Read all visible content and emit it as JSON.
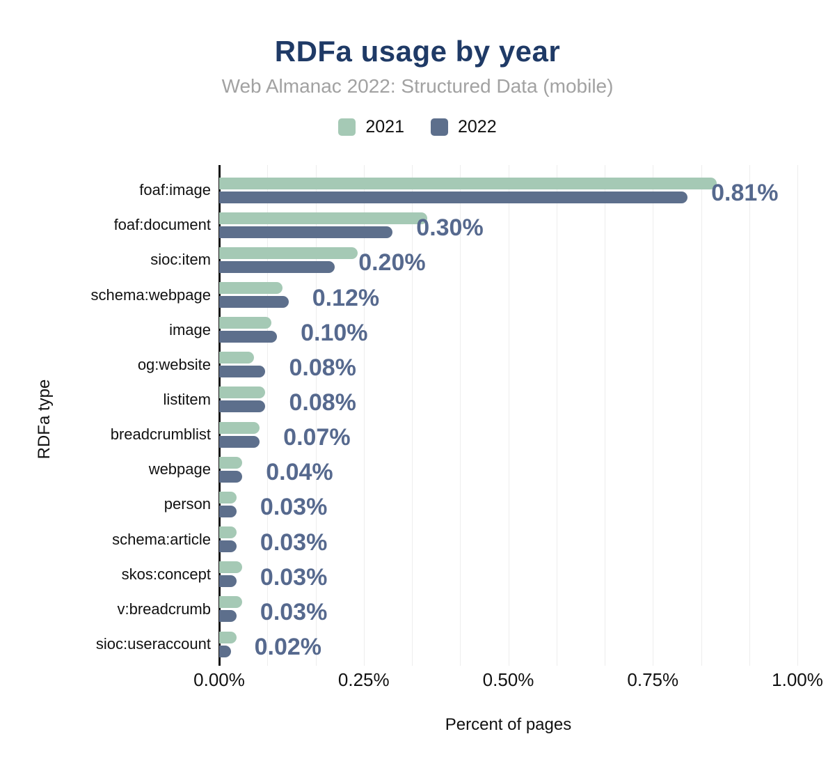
{
  "header": {
    "title": "RDFa usage by year",
    "subtitle": "Web Almanac 2022: Structured Data (mobile)"
  },
  "legend": {
    "items": [
      {
        "label": "2021",
        "color": "#a5c9b5"
      },
      {
        "label": "2022",
        "color": "#5d6f8c"
      }
    ]
  },
  "chart_data": {
    "type": "bar",
    "orientation": "horizontal",
    "title": "RDFa usage by year",
    "subtitle": "Web Almanac 2022: Structured Data (mobile)",
    "xlabel": "Percent of pages",
    "ylabel": "RDFa type",
    "xlim": [
      0,
      1.0
    ],
    "x_ticks": [
      "0.00%",
      "0.25%",
      "0.50%",
      "0.75%",
      "1.00%"
    ],
    "x_tick_values": [
      0,
      0.25,
      0.5,
      0.75,
      1.0
    ],
    "grid": "minor vertical gridlines, 12 divisions",
    "legend_position": "top",
    "categories": [
      "foaf:image",
      "foaf:document",
      "sioc:item",
      "schema:webpage",
      "image",
      "og:website",
      "listitem",
      "breadcrumblist",
      "webpage",
      "person",
      "schema:article",
      "skos:concept",
      "v:breadcrumb",
      "sioc:useraccount"
    ],
    "series": [
      {
        "name": "2021",
        "color": "#a5c9b5",
        "values": [
          0.86,
          0.36,
          0.24,
          0.11,
          0.09,
          0.06,
          0.08,
          0.07,
          0.04,
          0.03,
          0.03,
          0.04,
          0.04,
          0.03
        ]
      },
      {
        "name": "2022",
        "color": "#5d6f8c",
        "values": [
          0.81,
          0.3,
          0.2,
          0.12,
          0.1,
          0.08,
          0.08,
          0.07,
          0.04,
          0.03,
          0.03,
          0.03,
          0.03,
          0.02
        ]
      }
    ],
    "data_labels": [
      "0.81%",
      "0.30%",
      "0.20%",
      "0.12%",
      "0.10%",
      "0.08%",
      "0.08%",
      "0.07%",
      "0.04%",
      "0.03%",
      "0.03%",
      "0.03%",
      "0.03%",
      "0.02%"
    ],
    "data_label_series": "2022"
  },
  "colors": {
    "title": "#1f3a66",
    "subtitle": "#a2a2a2",
    "value_label": "#56698e",
    "axis": "#111111",
    "grid": "#ededed",
    "background": "#ffffff"
  }
}
